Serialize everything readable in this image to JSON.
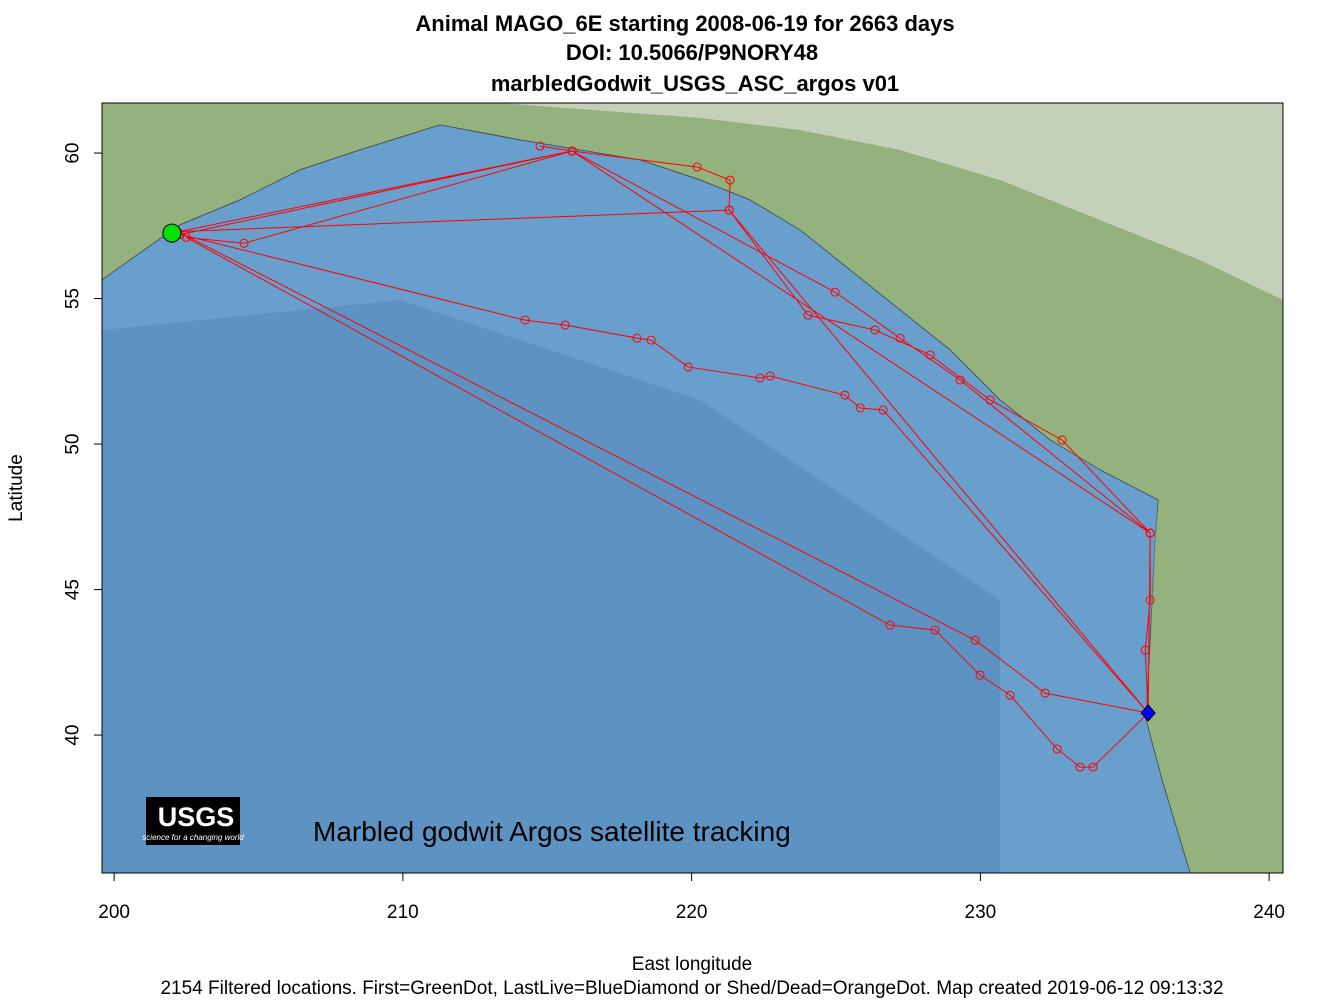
{
  "chart_data": {
    "type": "line",
    "title": [
      "Animal  MAGO_6E starting  2008-06-19 for 2663 days",
      "DOI: 10.5066/P9NORY48",
      "marbledGodwit_USGS_ASC_argos v01"
    ],
    "xlabel": "East longitude",
    "ylabel": "Latitude",
    "footer": "2154 Filtered locations. First=GreenDot, LastLive=BlueDiamond or Shed/Dead=OrangeDot. Map created  2019-06-12 09:13:32",
    "annotation": "Marbled godwit Argos satellite tracking",
    "logo": {
      "name": "USGS",
      "tagline": "science for a changing world"
    },
    "xlim": [
      199.58,
      240.48
    ],
    "ylim": [
      35.26,
      61.72
    ],
    "xticks": [
      200,
      210,
      220,
      230,
      240
    ],
    "yticks": [
      40,
      45,
      50,
      55,
      60
    ],
    "color": "#ff0000",
    "x": [
      202.0,
      215.86,
      214.75,
      215.86,
      220.19,
      221.33,
      221.3,
      224.03,
      226.35,
      228.26,
      230.34,
      232.83,
      235.88,
      235.88,
      235.71,
      235.81,
      233.9,
      233.45,
      232.66,
      231.03,
      229.99,
      228.43,
      226.87,
      202.5,
      204.5,
      215.86,
      224.97,
      227.22,
      229.3,
      235.88,
      235.81,
      226.63,
      225.84,
      225.31,
      222.72,
      222.37,
      219.88,
      218.6,
      218.11,
      215.62,
      214.23,
      202.3,
      215.86,
      235.88,
      235.81,
      232.24,
      229.82,
      202.2,
      221.3,
      235.81
    ],
    "values": [
      57.25,
      60.07,
      60.24,
      60.07,
      59.52,
      59.07,
      58.04,
      54.43,
      53.92,
      53.06,
      51.51,
      50.14,
      46.94,
      44.64,
      42.92,
      40.76,
      38.9,
      38.9,
      39.52,
      41.37,
      42.06,
      43.61,
      43.78,
      57.1,
      56.9,
      60.07,
      55.22,
      53.64,
      52.2,
      46.94,
      40.76,
      51.17,
      51.24,
      51.68,
      52.34,
      52.27,
      52.65,
      53.57,
      53.64,
      54.09,
      54.26,
      57.2,
      60.07,
      46.94,
      40.76,
      41.44,
      43.26,
      57.3,
      58.04,
      40.76
    ],
    "first": {
      "x": 202.0,
      "y": 57.25,
      "color": "#00e000"
    },
    "last": {
      "x": 235.81,
      "y": 40.76,
      "color": "#0000ff"
    }
  }
}
